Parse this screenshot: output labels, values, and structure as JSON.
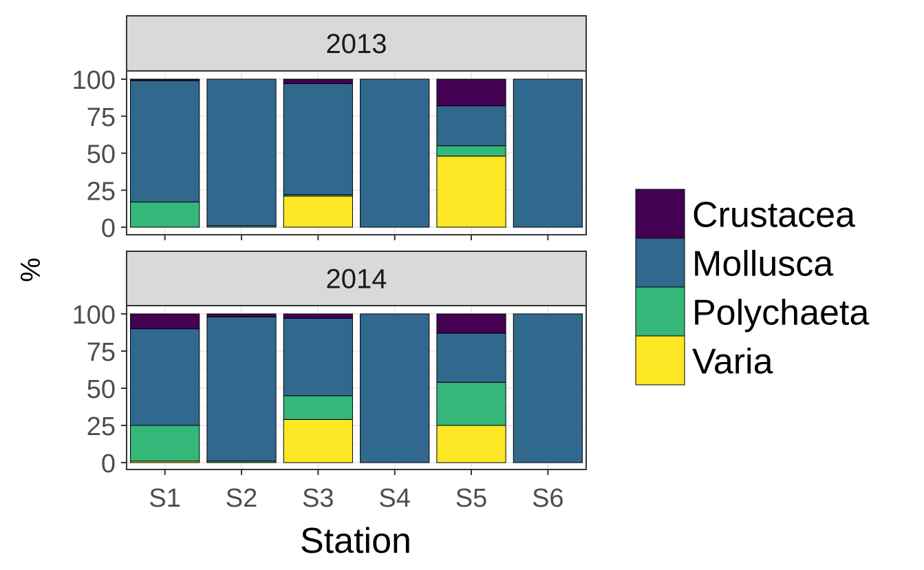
{
  "chart_data": {
    "type": "bar",
    "stacked": true,
    "xlabel": "Station",
    "ylabel": "%",
    "ylim": [
      0,
      100
    ],
    "yticks": [
      "0",
      "25",
      "50",
      "75",
      "100"
    ],
    "categories": [
      "S1",
      "S2",
      "S3",
      "S4",
      "S5",
      "S6"
    ],
    "grid": true,
    "legend_position": "right",
    "legend": [
      {
        "name": "Crustacea",
        "color": "#440154"
      },
      {
        "name": "Mollusca",
        "color": "#31688E"
      },
      {
        "name": "Polychaeta",
        "color": "#35B779"
      },
      {
        "name": "Varia",
        "color": "#FDE725"
      }
    ],
    "panels": [
      {
        "label": "2013",
        "series": [
          {
            "name": "Varia",
            "values": [
              0,
              0,
              21,
              0,
              48,
              0
            ]
          },
          {
            "name": "Polychaeta",
            "values": [
              17,
              1,
              1,
              0,
              7,
              0
            ]
          },
          {
            "name": "Mollusca",
            "values": [
              82,
              99,
              75,
              100,
              27,
              100
            ]
          },
          {
            "name": "Crustacea",
            "values": [
              1,
              0,
              3,
              0,
              18,
              0
            ]
          }
        ]
      },
      {
        "label": "2014",
        "series": [
          {
            "name": "Varia",
            "values": [
              1,
              0,
              29,
              0,
              25,
              0
            ]
          },
          {
            "name": "Polychaeta",
            "values": [
              24,
              1,
              16,
              0,
              29,
              0
            ]
          },
          {
            "name": "Mollusca",
            "values": [
              65,
              97,
              52,
              100,
              33,
              100
            ]
          },
          {
            "name": "Crustacea",
            "values": [
              10,
              2,
              3,
              0,
              13,
              0
            ]
          }
        ]
      }
    ]
  }
}
